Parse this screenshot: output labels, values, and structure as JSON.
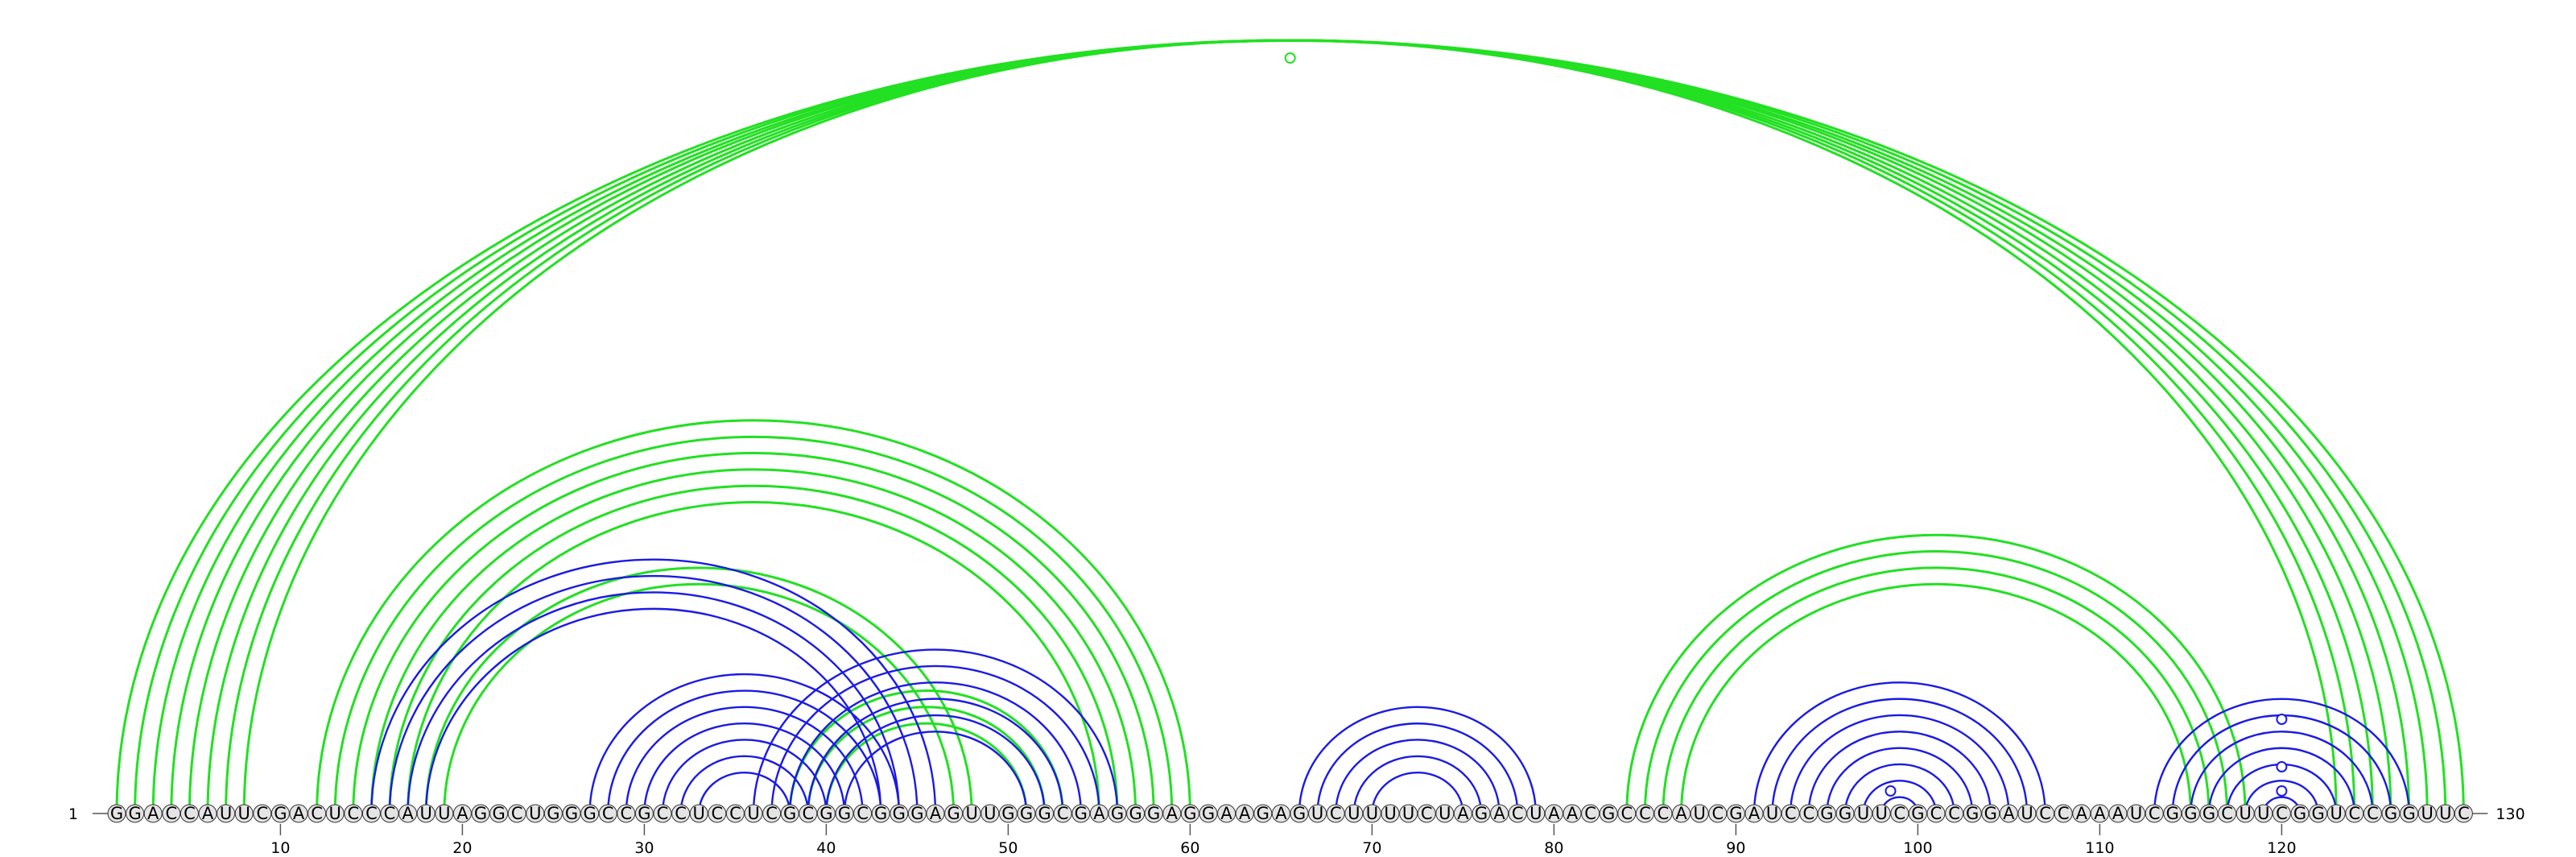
{
  "sequence": {
    "nucleotides": "GGACCAUUCGACUCCCAUUAGGCUGGGCCGCCUCCUCGCGGCGGGAGUUGGGCGAGGGAGGAAGAGUCUUUUCUAGACUAACGCCCAUCGAUCCGGUUCGCCGGAUCCAAAUCGGGCUUCGGUCCGGUUC",
    "start_label": "1",
    "end_label": "130",
    "length": 130
  },
  "ticks": [
    {
      "position": 10,
      "label": "10"
    },
    {
      "position": 20,
      "label": "20"
    },
    {
      "position": 30,
      "label": "30"
    },
    {
      "position": 40,
      "label": "40"
    },
    {
      "position": 50,
      "label": "50"
    },
    {
      "position": 60,
      "label": "60"
    },
    {
      "position": 70,
      "label": "70"
    },
    {
      "position": 80,
      "label": "80"
    },
    {
      "position": 90,
      "label": "90"
    },
    {
      "position": 100,
      "label": "100"
    },
    {
      "position": 110,
      "label": "110"
    },
    {
      "position": 120,
      "label": "120"
    }
  ],
  "colors": {
    "green_arc": "#22e022",
    "blue_arc": "#1a1ae6",
    "circle_fill": "#e4e4e4",
    "circle_stroke": "#333333",
    "axis": "#555555"
  },
  "arc_groups": [
    {
      "name": "outer-helix-1",
      "color": "green",
      "pairs": [
        [
          1,
          130
        ],
        [
          2,
          129
        ],
        [
          3,
          128
        ],
        [
          4,
          127
        ]
      ]
    },
    {
      "name": "outer-helix-2",
      "color": "green",
      "pairs": [
        [
          5,
          126
        ],
        [
          6,
          125
        ],
        [
          7,
          124
        ],
        [
          8,
          123
        ]
      ]
    },
    {
      "name": "middle-helix-green",
      "color": "green",
      "pairs": [
        [
          12,
          60
        ],
        [
          13,
          59
        ],
        [
          14,
          58
        ],
        [
          15,
          57
        ]
      ]
    },
    {
      "name": "middle-helix-green-2",
      "color": "green",
      "pairs": [
        [
          16,
          56
        ],
        [
          17,
          55
        ],
        [
          18,
          48
        ],
        [
          19,
          47
        ]
      ]
    },
    {
      "name": "inner-green",
      "color": "green",
      "pairs": [
        [
          38,
          53
        ],
        [
          39,
          52
        ],
        [
          40,
          51
        ]
      ]
    },
    {
      "name": "blue-helix-a",
      "color": "blue",
      "pairs": [
        [
          15,
          46
        ],
        [
          16,
          45
        ],
        [
          17,
          44
        ],
        [
          18,
          43
        ]
      ]
    },
    {
      "name": "blue-helix-b",
      "color": "blue",
      "pairs": [
        [
          27,
          44
        ],
        [
          28,
          43
        ],
        [
          29,
          42
        ],
        [
          30,
          41
        ],
        [
          31,
          40
        ],
        [
          32,
          39
        ],
        [
          33,
          38
        ]
      ]
    },
    {
      "name": "blue-helix-c",
      "color": "blue",
      "pairs": [
        [
          36,
          56
        ],
        [
          37,
          55
        ],
        [
          38,
          54
        ],
        [
          39,
          53
        ],
        [
          40,
          52
        ],
        [
          41,
          51
        ]
      ]
    },
    {
      "name": "hairpin-70",
      "color": "blue",
      "pairs": [
        [
          66,
          79
        ],
        [
          67,
          78
        ],
        [
          68,
          77
        ],
        [
          69,
          76
        ],
        [
          70,
          75
        ]
      ]
    },
    {
      "name": "green-helix-right",
      "color": "green",
      "pairs": [
        [
          84,
          118
        ],
        [
          85,
          117
        ],
        [
          86,
          116
        ],
        [
          87,
          115
        ]
      ]
    },
    {
      "name": "blue-hairpin-100",
      "color": "blue",
      "pairs": [
        [
          91,
          107
        ],
        [
          92,
          106
        ],
        [
          93,
          105
        ],
        [
          94,
          104
        ],
        [
          95,
          103
        ],
        [
          96,
          102
        ],
        [
          97,
          101
        ],
        [
          98,
          100
        ]
      ]
    },
    {
      "name": "blue-hairpin-120",
      "color": "blue",
      "pairs": [
        [
          113,
          127
        ],
        [
          114,
          126
        ],
        [
          115,
          125
        ],
        [
          116,
          124
        ],
        [
          117,
          123
        ],
        [
          118,
          122
        ],
        [
          119,
          121
        ]
      ]
    }
  ],
  "markers": [
    {
      "position": 65.5,
      "level": "top"
    },
    {
      "position": 98.5,
      "level": "bottom"
    },
    {
      "position": 120,
      "level": "mid-high"
    },
    {
      "position": 120,
      "level": "mid"
    },
    {
      "position": 120,
      "level": "low"
    }
  ]
}
